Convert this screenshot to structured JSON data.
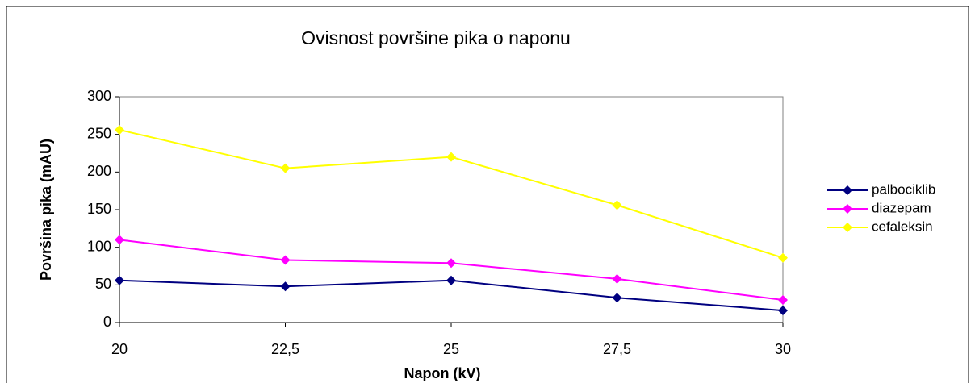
{
  "chart_data": {
    "type": "line",
    "title": "Ovisnost površine pika o naponu",
    "xlabel": "Napon (kV)",
    "ylabel": "Površina pika (mAU)",
    "x": [
      20,
      22.5,
      25,
      27.5,
      30
    ],
    "series": [
      {
        "name": "palbociklib",
        "color": "#000080",
        "values": [
          56,
          48,
          56,
          33,
          16
        ]
      },
      {
        "name": "diazepam",
        "color": "#ff00ff",
        "values": [
          110,
          83,
          79,
          58,
          30
        ]
      },
      {
        "name": "cefaleksin",
        "color": "#ffff00",
        "values": [
          256,
          205,
          220,
          156,
          86
        ]
      }
    ],
    "xlim": [
      20,
      30
    ],
    "xticks": [
      20,
      {
        "value": 22.5,
        "label": "22,5"
      },
      25,
      {
        "value": 27.5,
        "label": "27,5"
      },
      30
    ],
    "ylim": [
      0,
      300
    ],
    "yticks": [
      0,
      50,
      100,
      150,
      200,
      250,
      300
    ],
    "grid": false,
    "legend": "right"
  }
}
